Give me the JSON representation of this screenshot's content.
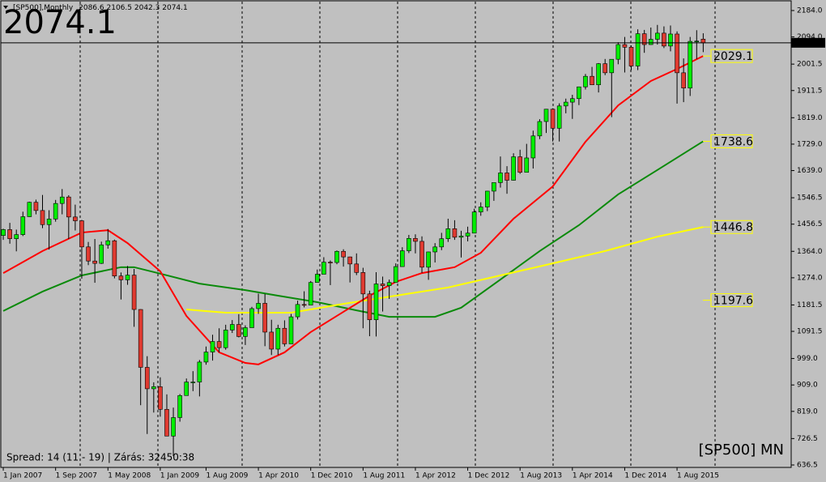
{
  "chart_data": {
    "type": "candlestick",
    "symbol_title": "[SP500],Monthly",
    "ohlc": [
      2086.6,
      2106.5,
      2042.3,
      2074.1
    ],
    "last_price": 2074.1,
    "footer_left": "Spread: 14 (11 - 19)  | Zárás: 32450:38",
    "footer_right": "[SP500] MN",
    "bull_color": "#00ee00",
    "bear_color": "#e03a30",
    "xlim": [
      -0.5,
      120.2
    ],
    "ylim": [
      628.2,
      2214.3
    ],
    "xticks": [
      {
        "value": 0,
        "label": "1 Jan 2007"
      },
      {
        "value": 8,
        "label": "1 Sep 2007"
      },
      {
        "value": 16,
        "label": "1 May 2008"
      },
      {
        "value": 24,
        "label": "1 Jan 2009"
      },
      {
        "value": 31,
        "label": "1 Aug 2009"
      },
      {
        "value": 39,
        "label": "1 Apr 2010"
      },
      {
        "value": 47,
        "label": "1 Dec 2010"
      },
      {
        "value": 55,
        "label": "1 Aug 2011"
      },
      {
        "value": 63,
        "label": "1 Apr 2012"
      },
      {
        "value": 71,
        "label": "1 Dec 2012"
      },
      {
        "value": 79,
        "label": "1 Aug 2013"
      },
      {
        "value": 87,
        "label": "1 Apr 2014"
      },
      {
        "value": 95,
        "label": "1 Dec 2014"
      },
      {
        "value": 103,
        "label": "1 Aug 2015"
      }
    ],
    "yticks": [
      636.5,
      726.5,
      {
        "value": 819,
        "label": "819.0"
      },
      {
        "value": 909,
        "label": "909.0"
      },
      {
        "value": 999,
        "label": "999.0"
      },
      1091.5,
      1181.5,
      {
        "value": 1274,
        "label": "1274.0"
      },
      {
        "value": 1364,
        "label": "1364.0"
      },
      1456.5,
      1546.5,
      {
        "value": 1639,
        "label": "1639.0"
      },
      {
        "value": 1729,
        "label": "1729.0"
      },
      {
        "value": 1819,
        "label": "1819.0"
      },
      1911.5,
      2001.5,
      {
        "value": 2094,
        "label": "2094.0"
      },
      {
        "value": 2184,
        "label": "2184.0"
      }
    ],
    "open": [
      1418,
      1438,
      1407,
      1421,
      1482,
      1531,
      1503,
      1455,
      1474,
      1527,
      1549,
      1481,
      1468,
      1379,
      1331,
      1323,
      1386,
      1400,
      1280,
      1267,
      1283,
      1166,
      969,
      896,
      903,
      826,
      735,
      798,
      873,
      919,
      919,
      987,
      1021,
      1057,
      1036,
      1096,
      1115,
      1074,
      1104,
      1169,
      1187,
      1089,
      1031,
      1102,
      1049,
      1141,
      1183,
      1181,
      1258,
      1286,
      1327,
      1326,
      1364,
      1345,
      1321,
      1292,
      1219,
      1131,
      1253,
      1247,
      1258,
      1312,
      1366,
      1408,
      1398,
      1310,
      1362,
      1379,
      1407,
      1441,
      1412,
      1416,
      1426,
      1498,
      1515,
      1569,
      1598,
      1631,
      1606,
      1686,
      1633,
      1682,
      1757,
      1806,
      1848,
      1783,
      1859,
      1872,
      1884,
      1924,
      1960,
      1931,
      2003,
      1972,
      2018,
      2068,
      2059,
      1995,
      2105,
      2068,
      2086,
      2107,
      2063,
      2104,
      1972,
      1920,
      2079,
      2086.6
    ],
    "high": [
      1441,
      1461,
      1438,
      1499,
      1533,
      1540,
      1556,
      1504,
      1539,
      1576,
      1555,
      1523,
      1471,
      1396,
      1406,
      1397,
      1440,
      1404,
      1292,
      1314,
      1304,
      1167,
      1007,
      918,
      935,
      877,
      832,
      878,
      931,
      956,
      994,
      1040,
      1080,
      1102,
      1114,
      1130,
      1150,
      1112,
      1175,
      1220,
      1219,
      1131,
      1114,
      1129,
      1151,
      1196,
      1228,
      1263,
      1302,
      1344,
      1333,
      1367,
      1371,
      1346,
      1357,
      1308,
      1230,
      1293,
      1278,
      1268,
      1323,
      1378,
      1420,
      1422,
      1415,
      1363,
      1392,
      1427,
      1475,
      1470,
      1434,
      1448,
      1509,
      1531,
      1570,
      1598,
      1687,
      1654,
      1698,
      1710,
      1730,
      1775,
      1814,
      1849,
      1851,
      1868,
      1884,
      1897,
      1925,
      1968,
      1992,
      2005,
      2019,
      2018,
      2076,
      2094,
      2065,
      2120,
      2118,
      2126,
      2135,
      2130,
      2133,
      2113,
      2021,
      2094,
      2117,
      2106.5
    ],
    "low": [
      1403,
      1390,
      1364,
      1416,
      1481,
      1490,
      1443,
      1370,
      1465,
      1490,
      1406,
      1435,
      1271,
      1317,
      1257,
      1321,
      1373,
      1272,
      1200,
      1250,
      1107,
      840,
      742,
      815,
      801,
      742,
      667,
      784,
      876,
      888,
      870,
      978,
      992,
      1020,
      1029,
      1086,
      1071,
      1045,
      1106,
      1151,
      1041,
      1011,
      1011,
      1040,
      1049,
      1132,
      1173,
      1182,
      1262,
      1295,
      1249,
      1320,
      1312,
      1258,
      1283,
      1102,
      1075,
      1074,
      1159,
      1202,
      1257,
      1312,
      1358,
      1357,
      1291,
      1267,
      1326,
      1368,
      1396,
      1403,
      1343,
      1398,
      1426,
      1485,
      1501,
      1536,
      1581,
      1560,
      1605,
      1628,
      1633,
      1646,
      1746,
      1767,
      1738,
      1738,
      1834,
      1815,
      1862,
      1915,
      1931,
      1905,
      1964,
      1821,
      2001,
      1973,
      1981,
      1981,
      2040,
      2067,
      2068,
      2056,
      2045,
      1867,
      1872,
      1893,
      2019,
      2042.3
    ],
    "close": [
      1438,
      1407,
      1421,
      1482,
      1531,
      1503,
      1455,
      1474,
      1527,
      1549,
      1481,
      1468,
      1379,
      1331,
      1323,
      1386,
      1400,
      1280,
      1267,
      1283,
      1166,
      969,
      896,
      903,
      826,
      735,
      798,
      873,
      919,
      919,
      987,
      1021,
      1057,
      1036,
      1096,
      1115,
      1074,
      1104,
      1169,
      1187,
      1089,
      1031,
      1102,
      1049,
      1141,
      1183,
      1181,
      1258,
      1286,
      1327,
      1326,
      1364,
      1345,
      1321,
      1292,
      1219,
      1131,
      1253,
      1247,
      1258,
      1312,
      1366,
      1408,
      1398,
      1310,
      1362,
      1379,
      1407,
      1441,
      1412,
      1416,
      1426,
      1498,
      1515,
      1569,
      1598,
      1631,
      1606,
      1686,
      1633,
      1682,
      1757,
      1806,
      1848,
      1783,
      1859,
      1872,
      1884,
      1924,
      1960,
      1931,
      2003,
      1972,
      2018,
      2068,
      2059,
      1995,
      2105,
      2068,
      2086,
      2107,
      2063,
      2104,
      1972,
      1920,
      2079,
      2080,
      2074.1
    ],
    "series": [
      {
        "color": "#0a8a0a",
        "x": [
          0,
          6,
          12,
          18,
          20,
          24,
          30,
          37,
          42,
          48,
          54,
          59,
          66,
          70,
          76,
          82,
          88,
          94,
          100,
          107
        ],
        "values": [
          1161,
          1227,
          1282,
          1310,
          1310,
          1288,
          1254,
          1232,
          1213,
          1191,
          1163,
          1141,
          1141,
          1172,
          1268,
          1365,
          1453,
          1558,
          1641,
          1738.6
        ]
      },
      {
        "color": "#ffff00",
        "x": [
          28,
          34,
          44,
          52,
          60,
          68,
          76,
          84,
          92,
          100,
          107
        ],
        "values": [
          1166,
          1155,
          1155,
          1185,
          1213,
          1241,
          1282,
          1323,
          1365,
          1414,
          1446.8
        ]
      },
      {
        "color": "#ff0000",
        "x": [
          0,
          6,
          12,
          16,
          19,
          24,
          28,
          33,
          37,
          39,
          43,
          47,
          52,
          56,
          60,
          64,
          69,
          73,
          78,
          84,
          89,
          94,
          99,
          103,
          107
        ],
        "values": [
          1290,
          1365,
          1428,
          1436,
          1392,
          1296,
          1144,
          1020,
          984,
          979,
          1020,
          1089,
          1158,
          1213,
          1260,
          1290,
          1310,
          1359,
          1475,
          1585,
          1737,
          1861,
          1944,
          1985,
          2029.1
        ]
      }
    ],
    "price_labels": [
      2029.1,
      1738.6,
      1446.8,
      1197.6
    ],
    "price_label_color": "#ffff00"
  }
}
